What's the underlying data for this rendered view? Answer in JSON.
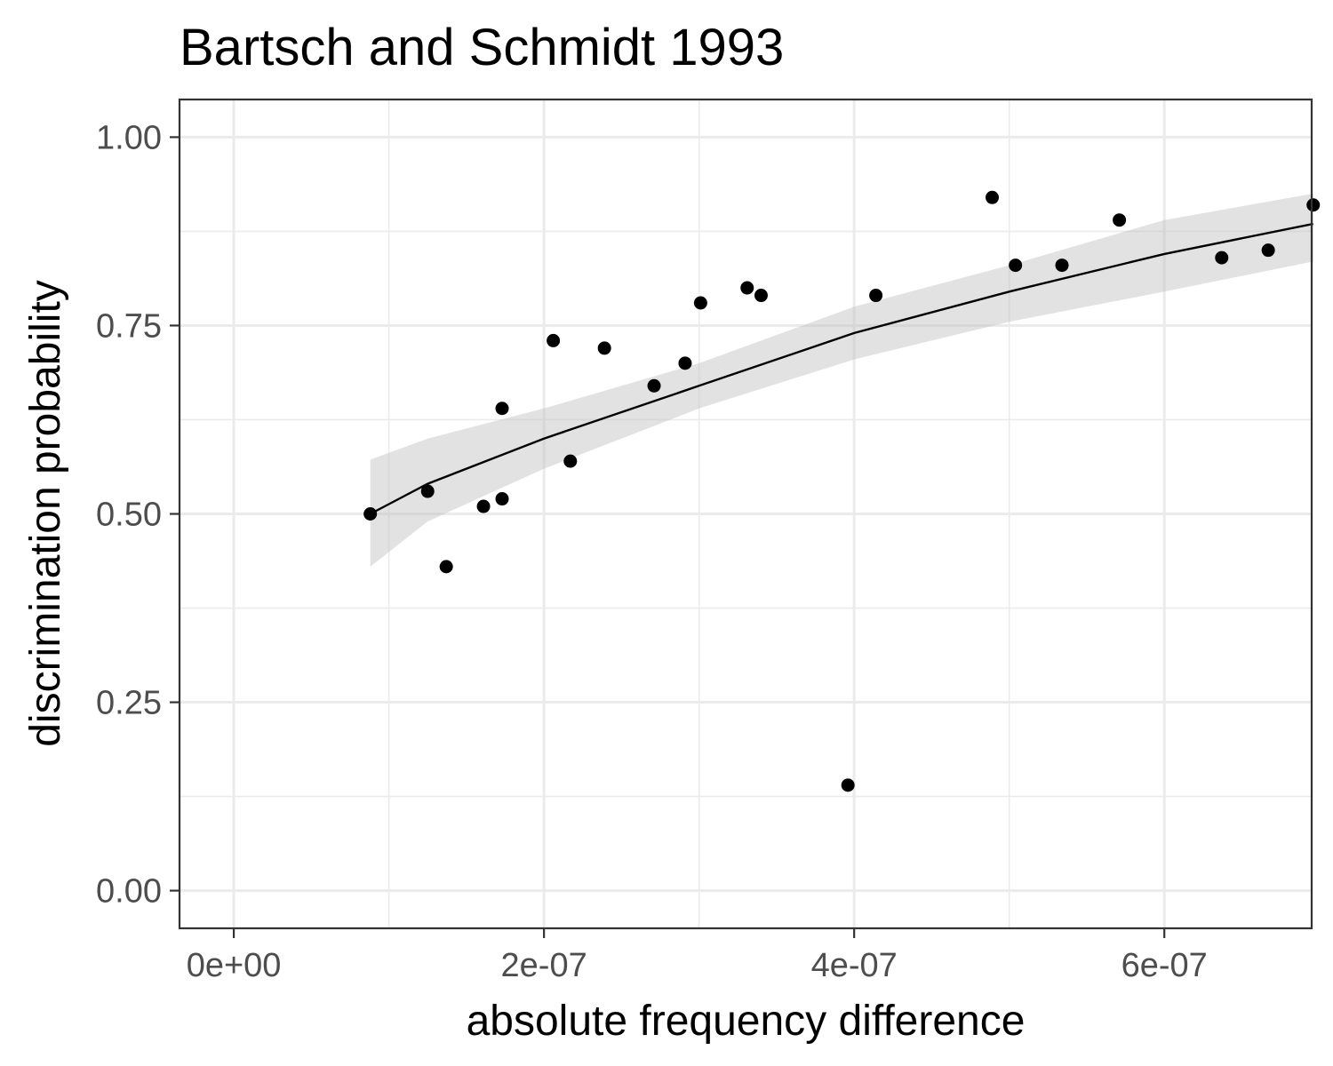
{
  "chart_data": {
    "type": "scatter",
    "title": "Bartsch and Schmidt 1993",
    "xlabel": "absolute frequency difference",
    "ylabel": "discrimination probability",
    "xlim": [
      -3.5e-08,
      6.95e-07
    ],
    "ylim": [
      -0.05,
      1.05
    ],
    "x_ticks": [
      0,
      2e-07,
      4e-07,
      6e-07
    ],
    "x_tick_labels": [
      "0e+00",
      "2e-07",
      "4e-07",
      "6e-07"
    ],
    "y_ticks": [
      0,
      0.25,
      0.5,
      0.75,
      1.0
    ],
    "y_tick_labels": [
      "0.00",
      "0.25",
      "0.50",
      "0.75",
      "1.00"
    ],
    "grid": true,
    "points": [
      {
        "x": 8.8e-08,
        "y": 0.5
      },
      {
        "x": 1.25e-07,
        "y": 0.53
      },
      {
        "x": 1.37e-07,
        "y": 0.43
      },
      {
        "x": 1.61e-07,
        "y": 0.51
      },
      {
        "x": 1.73e-07,
        "y": 0.64
      },
      {
        "x": 1.73e-07,
        "y": 0.52
      },
      {
        "x": 2.06e-07,
        "y": 0.73
      },
      {
        "x": 2.17e-07,
        "y": 0.57
      },
      {
        "x": 2.39e-07,
        "y": 0.72
      },
      {
        "x": 2.71e-07,
        "y": 0.67
      },
      {
        "x": 2.91e-07,
        "y": 0.7
      },
      {
        "x": 3.01e-07,
        "y": 0.78
      },
      {
        "x": 3.31e-07,
        "y": 0.8
      },
      {
        "x": 3.4e-07,
        "y": 0.79
      },
      {
        "x": 3.96e-07,
        "y": 0.14
      },
      {
        "x": 4.14e-07,
        "y": 0.79
      },
      {
        "x": 4.89e-07,
        "y": 0.92
      },
      {
        "x": 5.04e-07,
        "y": 0.83
      },
      {
        "x": 5.34e-07,
        "y": 0.83
      },
      {
        "x": 5.71e-07,
        "y": 0.89
      },
      {
        "x": 6.37e-07,
        "y": 0.84
      },
      {
        "x": 6.67e-07,
        "y": 0.85
      },
      {
        "x": 6.96e-07,
        "y": 0.91
      }
    ],
    "fit": {
      "x": [
        8.8e-08,
        1.25e-07,
        2e-07,
        3e-07,
        4e-07,
        5e-07,
        6e-07,
        6.96e-07
      ],
      "y": [
        0.5,
        0.54,
        0.6,
        0.67,
        0.74,
        0.795,
        0.845,
        0.885
      ],
      "lower": [
        0.43,
        0.49,
        0.56,
        0.64,
        0.705,
        0.755,
        0.795,
        0.835
      ],
      "upper": [
        0.572,
        0.6,
        0.64,
        0.7,
        0.775,
        0.83,
        0.89,
        0.925
      ]
    }
  }
}
